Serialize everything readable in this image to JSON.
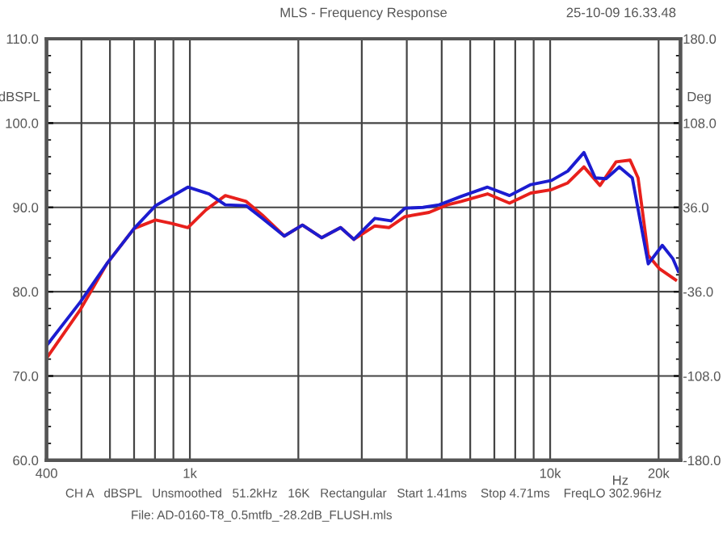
{
  "chart_data": {
    "type": "line",
    "title": "MLS - Frequency Response",
    "subtitle": "25-10-09 16.33.48",
    "ylabel": "dBSPL",
    "y2label": "Deg",
    "xlabel": "Hz",
    "annotations": [
      "CH A   dBSPL   Unsmoothed   51.2kHz   16K   Rectangular   Start 1.41ms    Stop 4.71ms    FreqLO 302.96Hz",
      "File: AD-0160-T8_0.5mtfb_-28.2dB_FLUSH.mls"
    ],
    "log": "x",
    "xlim": [
      400,
      23000
    ],
    "ylim": [
      60,
      110
    ],
    "y2lim": [
      -180,
      180
    ],
    "xticks": [
      400,
      {
        "value": 500,
        "label": null
      },
      {
        "value": 600,
        "label": null
      },
      {
        "value": 700,
        "label": null
      },
      {
        "value": 800,
        "label": null
      },
      {
        "value": 900,
        "label": null
      },
      {
        "value": 1000,
        "label": "1k"
      },
      {
        "value": 2000,
        "label": null
      },
      {
        "value": 3000,
        "label": null
      },
      {
        "value": 4000,
        "label": null
      },
      {
        "value": 5000,
        "label": null
      },
      {
        "value": 6000,
        "label": null
      },
      {
        "value": 7000,
        "label": null
      },
      {
        "value": 8000,
        "label": null
      },
      {
        "value": 9000,
        "label": null
      },
      {
        "value": 10000,
        "label": "10k"
      },
      {
        "value": 20000,
        "label": "20k"
      }
    ],
    "yticks": [
      {
        "value": 60,
        "label": "60.0"
      },
      {
        "value": 70,
        "label": "70.0"
      },
      {
        "value": 80,
        "label": "80.0"
      },
      {
        "value": 90,
        "label": "90.0"
      },
      {
        "value": 100,
        "label": "100.0"
      },
      {
        "value": 110,
        "label": "110.0"
      }
    ],
    "y2ticks": [
      {
        "value": -180,
        "label": "-180.0"
      },
      {
        "value": -108,
        "label": "-108.0"
      },
      {
        "value": -36,
        "label": "-36.0"
      },
      {
        "value": 36,
        "label": "36.0"
      },
      {
        "value": 108,
        "label": "108.0"
      },
      {
        "value": 180,
        "label": "180.0"
      }
    ],
    "grid": true,
    "marker": "none",
    "line_style": "solid",
    "series": [
      {
        "color": "#e8201c",
        "x": [
          400,
          497,
          590,
          700,
          803,
          890,
          987,
          1108,
          1254,
          1433,
          1588,
          1828,
          2053,
          2323,
          2620,
          2852,
          3262,
          3567,
          3954,
          4611,
          5180,
          5664,
          6700,
          7713,
          8837,
          10090,
          11190,
          12410,
          13750,
          15240,
          16670,
          17540,
          18720,
          20130,
          22300
        ],
        "values": [
          72.1,
          77.9,
          83.4,
          87.5,
          88.5,
          88.1,
          87.6,
          89.7,
          91.4,
          90.7,
          89.1,
          86.6,
          87.9,
          86.4,
          87.6,
          86.2,
          87.8,
          87.6,
          88.9,
          89.4,
          90.3,
          90.7,
          91.6,
          90.5,
          91.7,
          92.1,
          92.9,
          94.8,
          92.6,
          95.4,
          95.6,
          93.5,
          84.3,
          82.7,
          81.4
        ]
      },
      {
        "color": "#1c1cd0",
        "x": [
          400,
          497,
          590,
          700,
          803,
          987,
          1131,
          1254,
          1433,
          1588,
          1828,
          2053,
          2323,
          2620,
          2852,
          3262,
          3614,
          3954,
          4438,
          4919,
          5664,
          6700,
          7713,
          8837,
          10090,
          11190,
          12410,
          13340,
          14290,
          15560,
          16900,
          18720,
          20480,
          21920,
          22690
        ],
        "values": [
          73.6,
          78.8,
          83.4,
          87.5,
          90.2,
          92.4,
          91.6,
          90.3,
          90.2,
          88.7,
          86.6,
          87.9,
          86.4,
          87.6,
          86.2,
          88.7,
          88.4,
          89.9,
          90.0,
          90.3,
          91.3,
          92.4,
          91.4,
          92.7,
          93.2,
          94.3,
          96.5,
          93.5,
          93.4,
          94.8,
          93.5,
          83.3,
          85.5,
          83.9,
          82.4
        ]
      }
    ]
  }
}
